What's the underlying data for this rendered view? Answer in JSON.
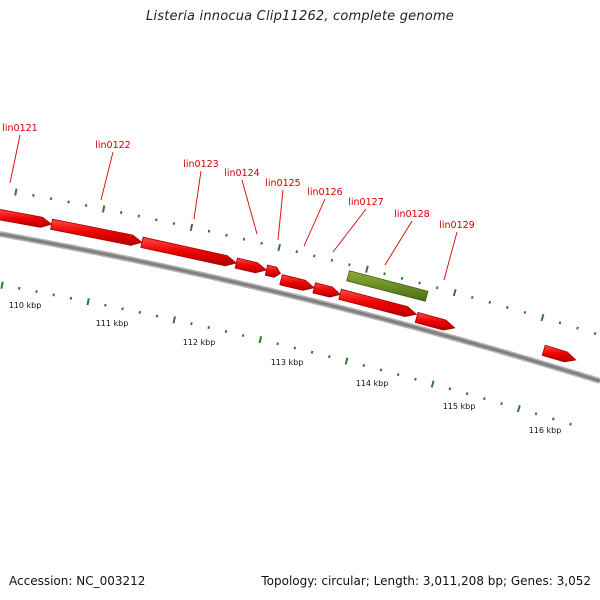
{
  "title": "Listeria innocua Clip11262, complete genome",
  "footer": {
    "accession": "Accession: NC_003212",
    "summary": "Topology: circular; Length: 3,011,208 bp; Genes: 3,052"
  },
  "colors": {
    "gene_forward": "#ee0000",
    "gene_other": "#6b8e23",
    "backbone": "#808080",
    "ticks": "#2e7d2e",
    "labels": "#d40000"
  },
  "gene_labels": [
    "lin0121",
    "lin0122",
    "lin0123",
    "lin0124",
    "lin0125",
    "lin0126",
    "lin0127",
    "lin0128",
    "lin0129"
  ],
  "kbp_labels": [
    "110 kbp",
    "111 kbp",
    "112 kbp",
    "113 kbp",
    "114 kbp",
    "115 kbp",
    "116 kbp"
  ]
}
